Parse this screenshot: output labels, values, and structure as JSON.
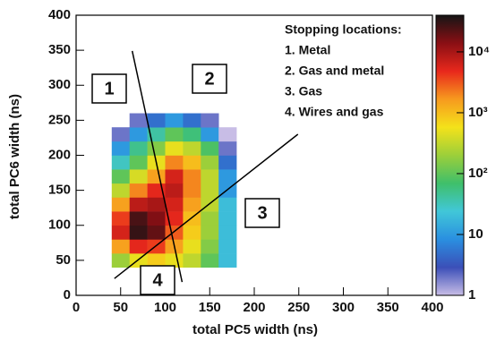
{
  "chart_data": {
    "type": "heatmap",
    "x_label": "total PC5 width (ns)",
    "y_label": "total PC6 width (ns)",
    "xlim": [
      0,
      400
    ],
    "ylim": [
      0,
      400
    ],
    "xticks": [
      0,
      50,
      100,
      150,
      200,
      250,
      300,
      350,
      400
    ],
    "yticks": [
      0,
      50,
      100,
      150,
      200,
      250,
      300,
      350,
      400
    ],
    "x_bins": [
      40,
      60,
      80,
      100,
      120,
      140,
      160,
      180
    ],
    "y_bins": [
      40,
      60,
      80,
      100,
      120,
      140,
      160,
      180,
      200,
      220,
      240,
      260
    ],
    "z": [
      [
        200,
        500,
        800,
        500,
        300,
        100,
        20
      ],
      [
        1500,
        5000,
        4000,
        1500,
        500,
        150,
        20
      ],
      [
        6000,
        30000,
        20000,
        3000,
        800,
        200,
        20
      ],
      [
        4000,
        25000,
        15000,
        5000,
        1000,
        200,
        20
      ],
      [
        1500,
        8000,
        10000,
        6000,
        1500,
        300,
        20
      ],
      [
        300,
        2000,
        5000,
        8000,
        2000,
        300,
        10
      ],
      [
        100,
        400,
        1500,
        6000,
        2000,
        300,
        10
      ],
      [
        30,
        100,
        500,
        2000,
        1000,
        200,
        5
      ],
      [
        10,
        50,
        150,
        500,
        300,
        80,
        2
      ],
      [
        2,
        10,
        40,
        100,
        60,
        10,
        1
      ],
      [
        null,
        2,
        5,
        10,
        5,
        2,
        null
      ]
    ],
    "log_scale": true,
    "clim": [
      1,
      40000
    ],
    "cticks": [
      1,
      10,
      {
        "value": 100,
        "label": "10²"
      },
      {
        "value": 1000,
        "label": "10³"
      },
      {
        "value": 10000,
        "label": "10⁴"
      }
    ],
    "colors": [
      "#c8bde6",
      "#3b4fb8",
      "#2a8fe0",
      "#41c7d8",
      "#3fbf6a",
      "#9ccf3a",
      "#f4e21a",
      "#f79a1e",
      "#e8281c",
      "#8a0f14",
      "#151515"
    ],
    "lines": [
      {
        "x": [
          63,
          119
        ],
        "y": [
          349,
          19
        ]
      },
      {
        "x": [
          43,
          249
        ],
        "y": [
          24,
          230
        ]
      }
    ],
    "regions": [
      "1",
      "2",
      "3",
      "4"
    ],
    "legend_title": "Stopping locations:",
    "legend_items": [
      "1. Metal",
      "2. Gas and metal",
      "3. Gas",
      "4. Wires and gas"
    ]
  }
}
